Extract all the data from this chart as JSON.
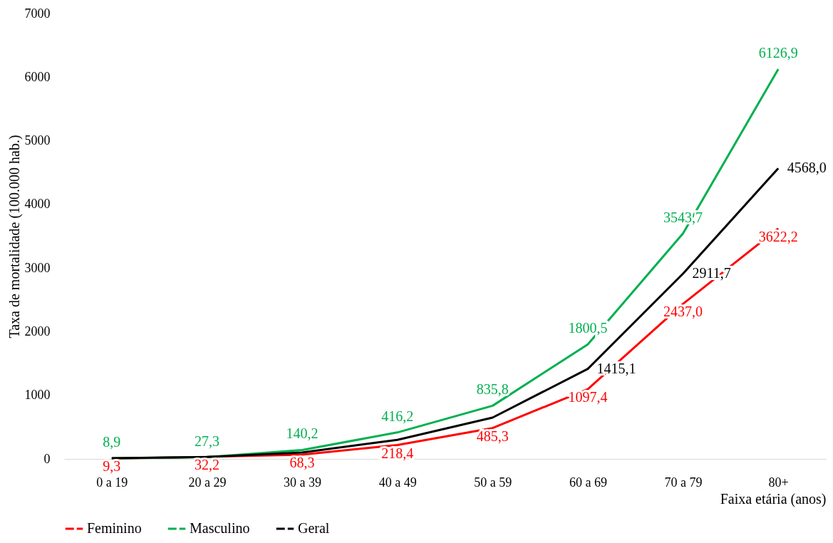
{
  "chart_data": {
    "type": "line",
    "xlabel": "Faixa etária (anos)",
    "ylabel": "Taxa de mortalidade (100.000 hab.)",
    "categories": [
      "0 a 19",
      "20 a 29",
      "30 a 39",
      "40 a 49",
      "50 a 59",
      "60 a 69",
      "70 a 79",
      "80+"
    ],
    "series": [
      {
        "name": "Feminino",
        "color": "#ff0000",
        "values": [
          9.3,
          32.2,
          68.3,
          218.4,
          485.3,
          1097.4,
          2437.0,
          3622.2
        ],
        "value_labels": [
          "9,3",
          "32,2",
          "68,3",
          "218,4",
          "485,3",
          "1097,4",
          "2437,0",
          "3622,2"
        ]
      },
      {
        "name": "Masculino",
        "color": "#00b050",
        "values": [
          8.9,
          27.3,
          140.2,
          416.2,
          835.8,
          1800.5,
          3543.7,
          6126.9
        ],
        "value_labels": [
          "8,9",
          "27,3",
          "140,2",
          "416,2",
          "835,8",
          "1800,5",
          "3543,7",
          "6126,9"
        ]
      },
      {
        "name": "Geral",
        "color": "#000000",
        "values": [
          10,
          30,
          100,
          300,
          650,
          1415.1,
          2911.7,
          4568.0
        ],
        "value_labels": [
          null,
          null,
          null,
          null,
          null,
          "1415,1",
          "2911,7",
          "4568,0"
        ]
      }
    ],
    "ylim": [
      0,
      7000
    ],
    "yticks": [
      0,
      1000,
      2000,
      3000,
      4000,
      5000,
      6000,
      7000
    ],
    "grid": false,
    "legend": "bottom",
    "marker": "none",
    "line_style": "solid"
  }
}
